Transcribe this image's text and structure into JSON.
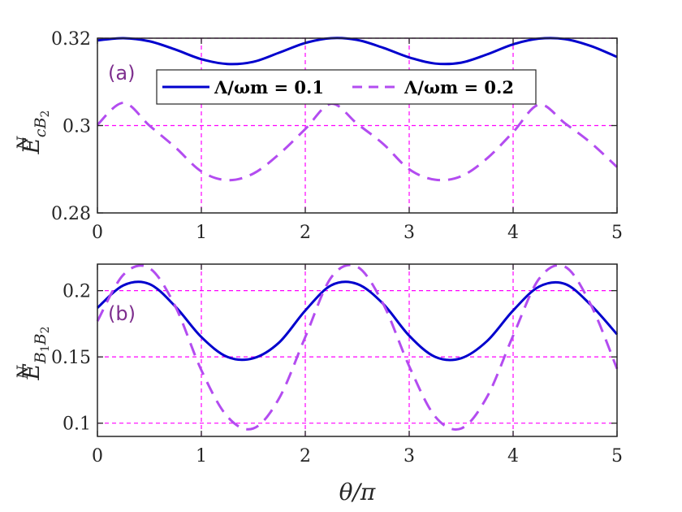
{
  "chart_data": [
    {
      "type": "line",
      "panel_label": "(a)",
      "ylabel": {
        "main": "E",
        "sup": "N",
        "sub": "cB",
        "subsub": "2"
      },
      "xlim": [
        0,
        5
      ],
      "ylim": [
        0.28,
        0.32
      ],
      "xticks": [
        "0",
        "1",
        "2",
        "3",
        "4",
        "5"
      ],
      "yticks": [
        "0.28",
        "0.3",
        "0.32"
      ],
      "ytick_values": [
        0.28,
        0.3,
        0.32
      ],
      "grid": "dashed magenta",
      "legend": {
        "placement": "top",
        "entries": [
          {
            "series": 0,
            "text": "Λ/ωm = 0.1"
          },
          {
            "series": 1,
            "text": "Λ/ωm = 0.2"
          }
        ]
      },
      "series": [
        {
          "style": "solid",
          "color": "#0000CD",
          "x": [
            0,
            0.25,
            0.5,
            0.75,
            1.0,
            1.25,
            1.5,
            1.75,
            2.0,
            2.25,
            2.5,
            2.75,
            3.0,
            3.25,
            3.5,
            3.75,
            4.0,
            4.25,
            4.5,
            4.75,
            5.0
          ],
          "y": [
            0.3195,
            0.32,
            0.3193,
            0.3174,
            0.3152,
            0.3141,
            0.3146,
            0.3167,
            0.3189,
            0.32,
            0.3196,
            0.3178,
            0.3156,
            0.3142,
            0.3144,
            0.3163,
            0.3186,
            0.3199,
            0.3198,
            0.3182,
            0.3157
          ]
        },
        {
          "style": "dashed",
          "color": "#B34CF0",
          "x": [
            0,
            0.25,
            0.5,
            0.75,
            1.0,
            1.25,
            1.5,
            1.75,
            2.0,
            2.25,
            2.5,
            2.75,
            3.0,
            3.25,
            3.5,
            3.75,
            4.0,
            4.25,
            4.5,
            4.75,
            5.0
          ],
          "y": [
            0.3002,
            0.3052,
            0.3,
            0.295,
            0.2895,
            0.2875,
            0.289,
            0.2935,
            0.2992,
            0.305,
            0.3004,
            0.2958,
            0.29,
            0.2876,
            0.2884,
            0.2925,
            0.2985,
            0.3048,
            0.3005,
            0.296,
            0.2905
          ]
        }
      ]
    },
    {
      "type": "line",
      "panel_label": "(b)",
      "ylabel": {
        "main": "E",
        "sup": "N",
        "sub": "B",
        "subsub1": "1",
        "sub2": "B",
        "subsub2": "2"
      },
      "xlabel": {
        "main": "θ/π"
      },
      "xlim": [
        0,
        5
      ],
      "ylim": [
        0.09,
        0.22
      ],
      "xticks": [
        "0",
        "1",
        "2",
        "3",
        "4",
        "5"
      ],
      "yticks": [
        "0.1",
        "0.15",
        "0.2"
      ],
      "ytick_values": [
        0.1,
        0.15,
        0.2
      ],
      "grid": "dashed magenta",
      "series": [
        {
          "style": "solid",
          "color": "#0000CD",
          "x": [
            0,
            0.25,
            0.5,
            0.75,
            1.0,
            1.25,
            1.5,
            1.75,
            2.0,
            2.25,
            2.5,
            2.75,
            3.0,
            3.25,
            3.5,
            3.75,
            4.0,
            4.25,
            4.5,
            4.75,
            5.0
          ],
          "y": [
            0.187,
            0.204,
            0.205,
            0.188,
            0.165,
            0.15,
            0.149,
            0.161,
            0.185,
            0.204,
            0.205,
            0.19,
            0.166,
            0.15,
            0.149,
            0.162,
            0.185,
            0.203,
            0.205,
            0.189,
            0.167
          ]
        },
        {
          "style": "dashed",
          "color": "#B34CF0",
          "x": [
            0,
            0.25,
            0.5,
            0.75,
            1.0,
            1.25,
            1.5,
            1.75,
            2.0,
            2.25,
            2.5,
            2.75,
            3.0,
            3.25,
            3.5,
            3.75,
            4.0,
            4.25,
            4.5,
            4.75,
            5.0
          ],
          "y": [
            0.177,
            0.212,
            0.217,
            0.188,
            0.14,
            0.105,
            0.096,
            0.119,
            0.165,
            0.21,
            0.218,
            0.19,
            0.143,
            0.105,
            0.096,
            0.12,
            0.166,
            0.209,
            0.218,
            0.189,
            0.141
          ]
        }
      ]
    }
  ]
}
